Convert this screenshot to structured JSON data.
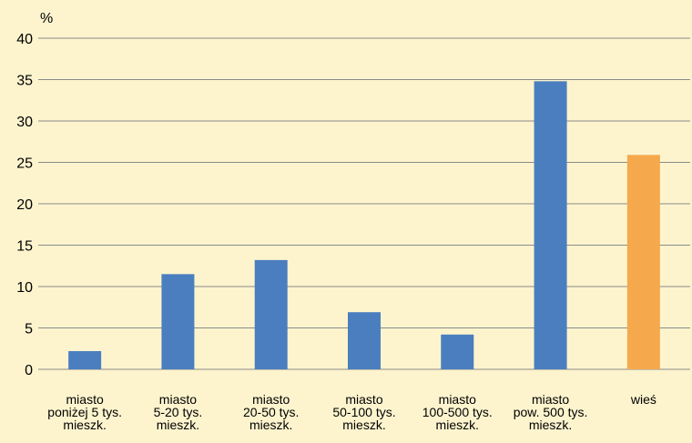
{
  "chart_data": {
    "type": "bar",
    "title": "",
    "xlabel": "",
    "ylabel": "%",
    "ylim": [
      0,
      40
    ],
    "yticks": [
      0,
      5,
      10,
      15,
      20,
      25,
      30,
      35,
      40
    ],
    "grid": true,
    "categories": [
      [
        "miasto",
        "poniżej 5 tys.",
        "mieszk."
      ],
      [
        "miasto",
        "5-20 tys.",
        "mieszk."
      ],
      [
        "miasto",
        "20-50 tys.",
        "mieszk."
      ],
      [
        "miasto",
        "50-100 tys.",
        "mieszk."
      ],
      [
        "miasto",
        "100-500 tys.",
        "mieszk."
      ],
      [
        "miasto",
        "pow. 500 tys.",
        "mieszk."
      ],
      [
        "wieś"
      ]
    ],
    "values": [
      2.2,
      11.5,
      13.2,
      6.9,
      4.2,
      34.8,
      25.9
    ],
    "bar_colors": [
      "#4a7ebf",
      "#4a7ebf",
      "#4a7ebf",
      "#4a7ebf",
      "#4a7ebf",
      "#4a7ebf",
      "#f5a94c"
    ],
    "background_color": "#fdf4ce",
    "grid_color": "#8a8a8a"
  }
}
